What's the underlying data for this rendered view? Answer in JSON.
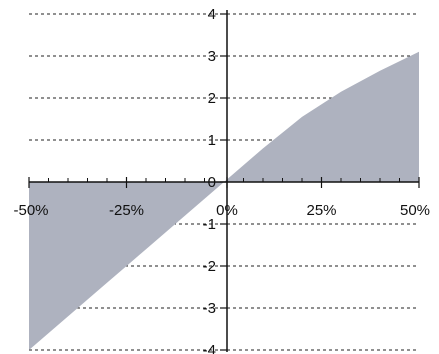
{
  "chart_data": {
    "type": "area",
    "x": [
      -50,
      -40,
      -30,
      -20,
      -10,
      0,
      10,
      20,
      30,
      40,
      50
    ],
    "values": [
      -4.0,
      -3.2,
      -2.4,
      -1.6,
      -0.8,
      0.0,
      0.8,
      1.55,
      2.15,
      2.65,
      3.1
    ],
    "x_tick_values": [
      -50,
      -25,
      0,
      25,
      50
    ],
    "x_tick_labels": [
      "-50%",
      "-25%",
      "0%",
      "25%",
      "50%"
    ],
    "y_tick_values": [
      4,
      3,
      2,
      1,
      0,
      -1,
      -2,
      -3,
      -4
    ],
    "y_tick_labels": [
      "4",
      "3",
      "2",
      "1",
      "0",
      "-1",
      "-2",
      "-3",
      "-4"
    ],
    "xlim": [
      -50,
      50
    ],
    "ylim": [
      -4,
      4
    ],
    "x_minor_ticks_per_major": 5,
    "grid": "horizontal dashed",
    "title": "",
    "xlabel": "",
    "ylabel": "",
    "colors": {
      "fill": "#aeb2bf",
      "axis": "#111111",
      "grid": "#222222"
    }
  }
}
